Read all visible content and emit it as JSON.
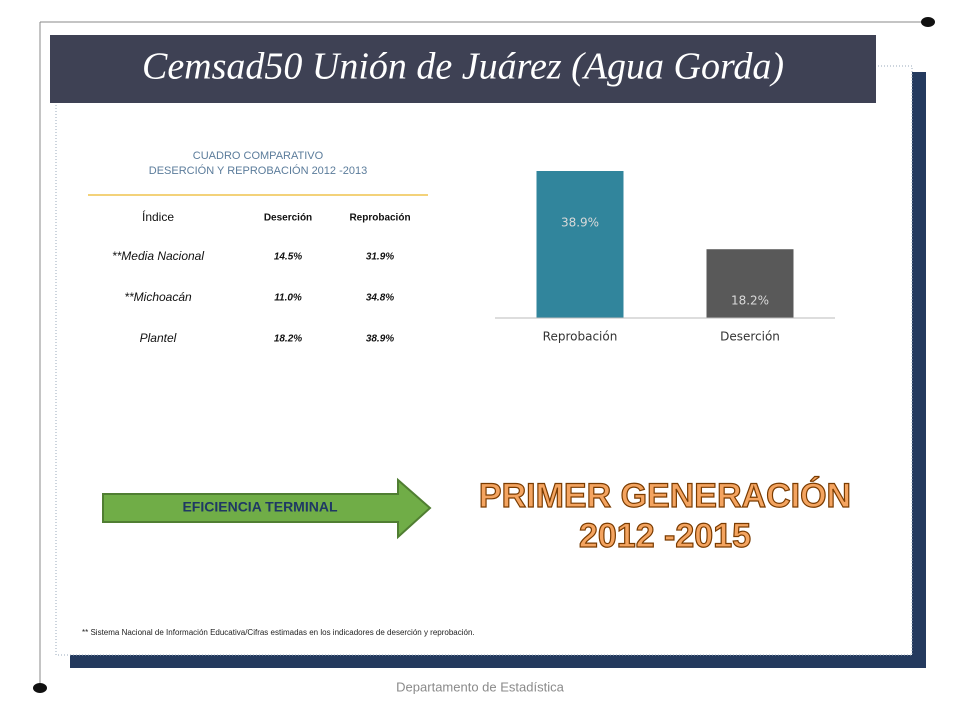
{
  "title": "Cemsad50 Unión de Juárez (Agua Gorda)",
  "table": {
    "title": [
      "CUADRO COMPARATIVO",
      "DESERCIÓN Y REPROBACIÓN  2012 -2013"
    ],
    "header": [
      "Índice",
      "Deserción",
      "Reprobación"
    ],
    "rows": [
      [
        "**Media Nacional",
        "14.5%",
        "31.9%"
      ],
      [
        "**Michoacán",
        "11.0%",
        "34.8%"
      ],
      [
        "Plantel",
        "18.2%",
        "38.9%"
      ]
    ]
  },
  "chart_data": {
    "type": "bar",
    "categories": [
      "Reprobación",
      "Deserción"
    ],
    "values": [
      38.9,
      18.2
    ],
    "value_labels": [
      "38.9%",
      "18.2%"
    ],
    "colors": [
      "#31859c",
      "#595959"
    ]
  },
  "arrow_label": "EFICIENCIA TERMINAL",
  "banner": [
    "PRIMER GENERACIÓN",
    "2012 -2015"
  ],
  "footnote": "** Sistema Nacional de Información Educativa/Cifras estimadas en los indicadores de deserción y reprobación.",
  "footer": "Departamento de Estadística"
}
